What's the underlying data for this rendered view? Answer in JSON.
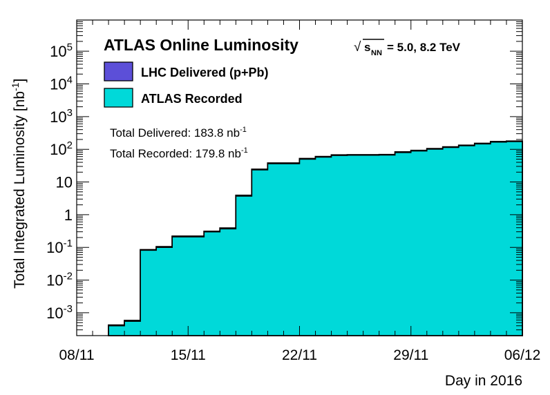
{
  "chart_data": {
    "type": "area",
    "title": "ATLAS Online Luminosity",
    "energy_label": {
      "sqrt_prefix": "√",
      "variable": "s",
      "subscript": "NN",
      "value": "= 5.0, 8.2 TeV"
    },
    "xlabel": "Day in 2016",
    "ylabel": {
      "main": "Total Integrated Luminosity [nb",
      "sup": "-1",
      "close": "]"
    },
    "x_ticks": [
      "08/11",
      "15/11",
      "22/11",
      "29/11",
      "06/12"
    ],
    "xlim_days": [
      0,
      28
    ],
    "y_scale": "log",
    "ylim": [
      0.0002,
      900000
    ],
    "y_ticks": [
      {
        "base": "10",
        "exp": "-3",
        "value": 0.001
      },
      {
        "base": "10",
        "exp": "-2",
        "value": 0.01
      },
      {
        "base": "10",
        "exp": "-1",
        "value": 0.1
      },
      {
        "base": "1",
        "exp": "",
        "value": 1
      },
      {
        "base": "10",
        "exp": "",
        "value": 10
      },
      {
        "base": "10",
        "exp": "2",
        "value": 100
      },
      {
        "base": "10",
        "exp": "3",
        "value": 1000
      },
      {
        "base": "10",
        "exp": "4",
        "value": 10000
      },
      {
        "base": "10",
        "exp": "5",
        "value": 100000
      }
    ],
    "series": [
      {
        "name": "LHC Delivered (p+Pb)",
        "color": "#5c4fd8",
        "x": [
          2.0,
          3.0,
          4.0,
          5.0,
          6.0,
          7.0,
          8.0,
          9.0,
          10.0,
          11.0,
          12.0,
          13.0,
          14.0,
          15.0,
          16.0,
          17.0,
          18.0,
          19.0,
          20.0,
          21.0,
          22.0,
          23.0,
          24.0,
          25.0,
          26.0,
          27.0,
          28.0
        ],
        "values": [
          0.00042,
          0.00058,
          0.085,
          0.105,
          0.22,
          0.22,
          0.31,
          0.39,
          3.9,
          24.5,
          38,
          38,
          52,
          60,
          67,
          68,
          68,
          69,
          83,
          92,
          105,
          118,
          133,
          152,
          172,
          178,
          183.8
        ]
      },
      {
        "name": "ATLAS Recorded",
        "color": "#00d9d9",
        "x": [
          2.0,
          3.0,
          4.0,
          5.0,
          6.0,
          7.0,
          8.0,
          9.0,
          10.0,
          11.0,
          12.0,
          13.0,
          14.0,
          15.0,
          16.0,
          17.0,
          18.0,
          19.0,
          20.0,
          21.0,
          22.0,
          23.0,
          24.0,
          25.0,
          26.0,
          27.0,
          28.0
        ],
        "values": [
          0.0004,
          0.00055,
          0.082,
          0.1,
          0.21,
          0.21,
          0.3,
          0.37,
          3.7,
          23.5,
          36.5,
          36.5,
          50,
          58,
          65,
          66,
          66,
          67,
          80,
          89,
          101,
          114,
          129,
          147,
          167,
          173,
          179.8
        ]
      }
    ],
    "totals": [
      {
        "label": "Total Delivered: 183.8 nb",
        "sup": "-1"
      },
      {
        "label": "Total Recorded: 179.8 nb",
        "sup": "-1"
      }
    ],
    "legend_position": "top-left",
    "grid": false
  }
}
